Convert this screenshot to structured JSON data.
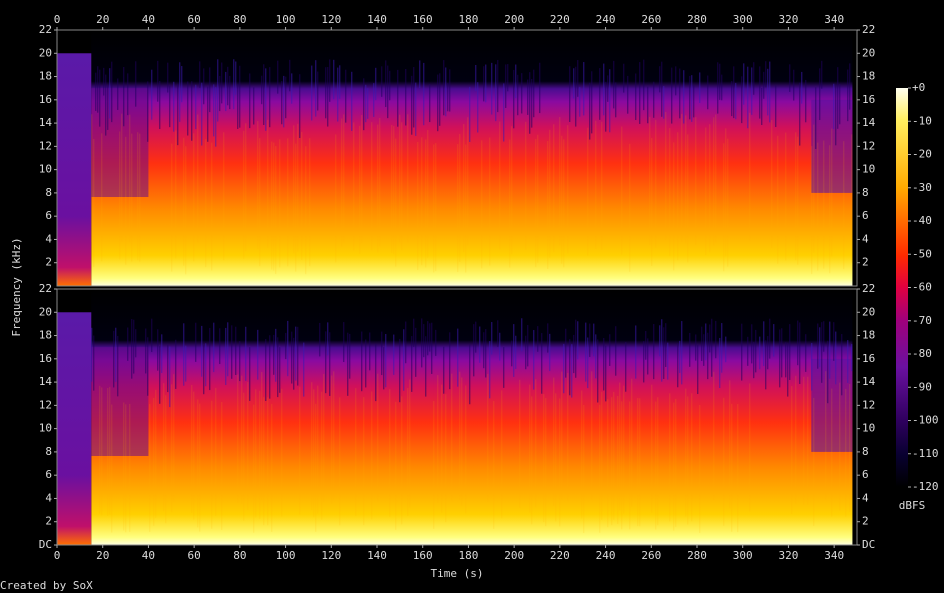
{
  "chart_data": {
    "type": "spectrogram",
    "x_label": "Time (s)",
    "y_label": "Frequency (kHz)",
    "xlim": [
      0,
      350
    ],
    "xticks": [
      0,
      20,
      40,
      60,
      80,
      100,
      120,
      140,
      160,
      180,
      200,
      220,
      240,
      260,
      280,
      300,
      320,
      340
    ],
    "ylim": [
      0,
      22
    ],
    "channels": [
      {
        "yticks": [
          2,
          4,
          6,
          8,
          10,
          12,
          14,
          16,
          18,
          20,
          22
        ]
      },
      {
        "yticks": [
          {
            "value": 0,
            "label": "DC"
          },
          2,
          4,
          6,
          8,
          10,
          12,
          14,
          16,
          18,
          20,
          22
        ]
      }
    ],
    "colorbar": {
      "label": "dBFS",
      "lim": [
        -120,
        0
      ],
      "ticks": [
        {
          "value": 0,
          "label": "+0"
        },
        -10,
        -20,
        -30,
        -40,
        -50,
        -60,
        -70,
        -80,
        -90,
        -100,
        -110,
        -120
      ]
    },
    "footer": "Created by SoX"
  }
}
